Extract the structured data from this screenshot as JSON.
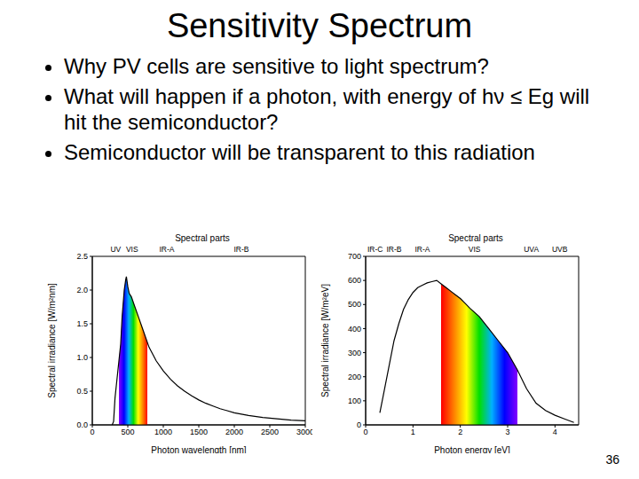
{
  "title": "Sensitivity Spectrum",
  "bullets": [
    "Why PV cells are sensitive to light spectrum?",
    "What will happen if a photon, with energy of hν ≤ Eg will hit the semiconductor?",
    "Semiconductor will be transparent to this radiation"
  ],
  "page_number": "36",
  "chart_data": [
    {
      "type": "line",
      "subtitle": "Spectral parts",
      "x_label": "Photon wavelength [nm]",
      "y_label": "Spectral irradiance [W/m²nm]",
      "x": [
        280,
        300,
        320,
        350,
        380,
        400,
        420,
        450,
        470,
        480,
        500,
        520,
        550,
        600,
        650,
        700,
        750,
        800,
        900,
        1000,
        1100,
        1200,
        1300,
        1400,
        1500,
        1600,
        1700,
        1800,
        1900,
        2000,
        2200,
        2400,
        2600,
        2800,
        3000
      ],
      "values": [
        0,
        0.05,
        0.4,
        0.7,
        1.0,
        1.2,
        1.6,
        2.0,
        2.15,
        2.2,
        2.05,
        1.95,
        1.9,
        1.75,
        1.6,
        1.45,
        1.3,
        1.15,
        0.95,
        0.8,
        0.68,
        0.58,
        0.5,
        0.43,
        0.37,
        0.32,
        0.28,
        0.24,
        0.21,
        0.18,
        0.14,
        0.11,
        0.09,
        0.07,
        0.06
      ],
      "color": "#000000",
      "xlim": [
        0,
        3000
      ],
      "xticks": [
        0,
        500,
        1000,
        1500,
        2000,
        2500,
        3000
      ],
      "ylim": [
        0,
        2.5
      ],
      "yticks": [
        {
          "value": 0,
          "label": "0.0"
        },
        0.5,
        {
          "value": 1,
          "label": "1.0"
        },
        1.5,
        {
          "value": 2,
          "label": "2.0"
        },
        2.5
      ],
      "visible_band": {
        "violet": 380,
        "red": 780
      },
      "annotations": [
        {
          "text": "UV",
          "x": 330
        },
        {
          "text": "VIS",
          "x": 560
        },
        {
          "text": "IR-A",
          "x": 1050
        },
        {
          "text": "IR-B",
          "x": 2100
        }
      ]
    },
    {
      "type": "line",
      "subtitle": "Spectral parts",
      "x_label": "Photon energy [eV]",
      "y_label": "Spectral irradiance [W/m²eV]",
      "x": [
        0.3,
        0.4,
        0.5,
        0.6,
        0.7,
        0.8,
        0.9,
        1.0,
        1.1,
        1.2,
        1.3,
        1.4,
        1.5,
        1.6,
        1.7,
        1.8,
        1.9,
        2.0,
        2.1,
        2.2,
        2.4,
        2.6,
        2.8,
        3.0,
        3.2,
        3.4,
        3.6,
        3.8,
        4.0,
        4.2,
        4.4
      ],
      "values": [
        50,
        150,
        250,
        350,
        420,
        480,
        520,
        550,
        570,
        580,
        590,
        595,
        600,
        585,
        570,
        555,
        540,
        525,
        505,
        485,
        450,
        400,
        350,
        300,
        230,
        150,
        90,
        60,
        40,
        25,
        10
      ],
      "color": "#000000",
      "xlim": [
        0,
        4.5
      ],
      "xticks": [
        0,
        1,
        2,
        3,
        4
      ],
      "ylim": [
        0,
        700
      ],
      "yticks": [
        0,
        100,
        200,
        300,
        400,
        500,
        600,
        700
      ],
      "visible_band": {
        "violet": 3.2,
        "red": 1.6
      },
      "annotations": [
        {
          "text": "IR-C",
          "x": 0.2
        },
        {
          "text": "IR-B",
          "x": 0.6
        },
        {
          "text": "IR-A",
          "x": 1.2
        },
        {
          "text": "VIS",
          "x": 2.3
        },
        {
          "text": "UVA",
          "x": 3.5
        },
        {
          "text": "UVB",
          "x": 4.1
        }
      ]
    }
  ]
}
